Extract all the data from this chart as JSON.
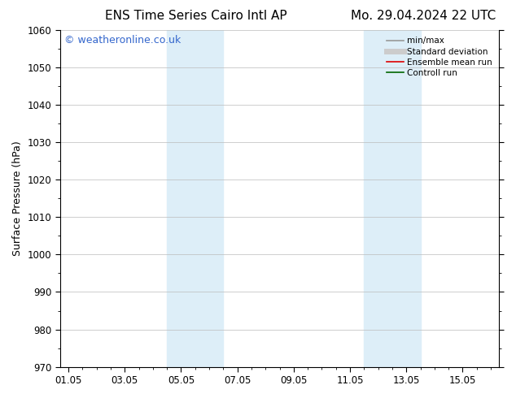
{
  "title_left": "ENS Time Series Cairo Intl AP",
  "title_right": "Mo. 29.04.2024 22 UTC",
  "ylabel": "Surface Pressure (hPa)",
  "ylim": [
    970,
    1060
  ],
  "yticks": [
    970,
    980,
    990,
    1000,
    1010,
    1020,
    1030,
    1040,
    1050,
    1060
  ],
  "xtick_labels": [
    "01.05",
    "03.05",
    "05.05",
    "07.05",
    "09.05",
    "11.05",
    "13.05",
    "15.05"
  ],
  "xtick_positions": [
    0,
    2,
    4,
    6,
    8,
    10,
    12,
    14
  ],
  "xlim": [
    -0.3,
    15.3
  ],
  "watermark": "© weatheronline.co.uk",
  "watermark_color": "#3366cc",
  "background_color": "#ffffff",
  "plot_bg_color": "#ffffff",
  "grid_color": "#bbbbbb",
  "shaded_bands": [
    {
      "xmin": 3.5,
      "xmax": 5.5
    },
    {
      "xmin": 10.5,
      "xmax": 12.5
    }
  ],
  "shaded_color": "#ddeef8",
  "legend_items": [
    {
      "label": "min/max",
      "color": "#999999",
      "lw": 1.2,
      "style": "solid"
    },
    {
      "label": "Standard deviation",
      "color": "#cccccc",
      "lw": 5,
      "style": "solid"
    },
    {
      "label": "Ensemble mean run",
      "color": "#dd0000",
      "lw": 1.2,
      "style": "solid"
    },
    {
      "label": "Controll run",
      "color": "#006600",
      "lw": 1.2,
      "style": "solid"
    }
  ],
  "title_fontsize": 11,
  "tick_fontsize": 8.5,
  "label_fontsize": 9,
  "watermark_fontsize": 9
}
